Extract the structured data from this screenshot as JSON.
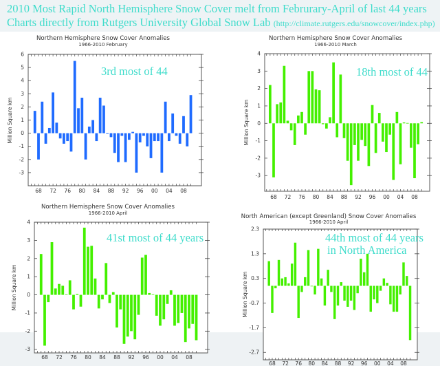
{
  "header": {
    "line1": "2010 Most Rapid North  Hemisphere Snow Cover melt from Februrary-April of last 44 years",
    "line2": "Charts directly from Rutgers University Global Snow Lab",
    "line2_url": "(http://climate.rutgers.edu/snowcover/index.php)"
  },
  "colors": {
    "header_text": "#3fdccb",
    "annotation": "#3fdccb",
    "blue_bars": "#1f6bff",
    "green_bars": "#44f000"
  },
  "chart_data": [
    {
      "type": "bar",
      "title": "Northern Hemisphere Snow Cover Anomalies",
      "subtitle": "1966-2010 February",
      "ylabel": "Million Square km",
      "annotation": [
        "3rd most of 44"
      ],
      "color": "#1f6bff",
      "ylim": [
        -4,
        6
      ],
      "yticks": [
        "6",
        "5",
        "4",
        "3",
        "2",
        "1",
        "0",
        "-1",
        "-2",
        "-3"
      ],
      "xticks": [
        "68",
        "72",
        "76",
        "80",
        "84",
        "88",
        "92",
        "96",
        "00",
        "04",
        "08"
      ],
      "x_start": 1967,
      "values": [
        1.7,
        -2.0,
        2.4,
        -0.8,
        0.4,
        3.1,
        0.8,
        -0.4,
        -0.8,
        -0.6,
        -1.4,
        5.5,
        1.9,
        2.7,
        -2.0,
        0.5,
        1.0,
        -0.6,
        2.7,
        2.1,
        -0.05,
        -0.3,
        -1.5,
        -2.2,
        -0.2,
        -2.2,
        -0.5,
        0.1,
        -3.0,
        -0.7,
        -0.2,
        -1.0,
        -1.9,
        -0.6,
        -0.6,
        -3.0,
        2.4,
        -0.6,
        1.5,
        -0.2,
        -0.8,
        1.3,
        -1.0,
        2.9
      ]
    },
    {
      "type": "bar",
      "title": "Northern Hemisphere Snow Cover Anomalies",
      "subtitle": "1966-2010 March",
      "ylabel": "Million Square km",
      "annotation": [
        "18th most of 44"
      ],
      "color": "#44f000",
      "ylim": [
        -3.9,
        4
      ],
      "yticks": [
        "4",
        "3",
        "2",
        "1",
        "0",
        "-1",
        "-2",
        "-3"
      ],
      "xticks": [
        "68",
        "72",
        "76",
        "80",
        "84",
        "88",
        "92",
        "96",
        "00",
        "04",
        "08"
      ],
      "x_start": 1967,
      "values": [
        2.2,
        -3.1,
        1.1,
        1.2,
        3.3,
        0.15,
        -0.4,
        -1.25,
        0.45,
        0.65,
        -0.65,
        3.0,
        3.0,
        1.95,
        1.9,
        -0.05,
        -0.3,
        0.35,
        3.5,
        -0.8,
        2.8,
        -0.85,
        -2.15,
        -3.55,
        -1.25,
        -2.15,
        -0.95,
        -1.3,
        -2.45,
        1.05,
        -1.7,
        0.6,
        -1.05,
        -1.65,
        -0.65,
        -3.25,
        0.65,
        -2.35,
        0.05,
        0.02,
        -1.4,
        -3.15,
        -1.2,
        0.07
      ]
    },
    {
      "type": "bar",
      "title": "Northern Hemisphere Snow Cover Anomalies",
      "subtitle": "1966-2010 April",
      "ylabel": "Million Square km",
      "annotation": [
        "41st most of 44 years"
      ],
      "color": "#44f000",
      "ylim": [
        -3.2,
        4
      ],
      "yticks": [
        "4",
        "3",
        "2",
        "1",
        "0",
        "-1",
        "-2",
        "-3"
      ],
      "xticks": [
        "68",
        "72",
        "76",
        "80",
        "84",
        "88",
        "92",
        "96",
        "00",
        "04",
        "08"
      ],
      "x_start": 1967,
      "values": [
        2.25,
        -2.8,
        -0.4,
        2.9,
        0.35,
        0.6,
        0.5,
        0.03,
        0.8,
        -0.8,
        0.05,
        -0.65,
        3.7,
        2.65,
        2.7,
        0.9,
        -0.75,
        -0.25,
        1.75,
        -0.45,
        0.15,
        -1.8,
        -0.8,
        -2.7,
        -2.3,
        -2.0,
        -2.45,
        -1.1,
        2.05,
        2.2,
        0.1,
        0.03,
        -1.15,
        -1.7,
        -1.35,
        -0.5,
        0.25,
        -1.7,
        -1.55,
        -1.0,
        -2.6,
        -1.85,
        -1.6,
        -2.5
      ]
    },
    {
      "type": "bar",
      "title": "North American (except Greenland) Snow Cover Anomalies",
      "subtitle": "1966-2010 April",
      "ylabel": "Million Square km",
      "annotation": [
        "44th most of 44 years",
        "in North America"
      ],
      "color": "#44f000",
      "ylim": [
        -3.0,
        2.3
      ],
      "yticks": [
        "2.3",
        "1.3",
        "0.3",
        "-0.7",
        "-1.7",
        "-2.7"
      ],
      "xticks": [
        "68",
        "72",
        "76",
        "80",
        "84",
        "88",
        "92",
        "96",
        "00",
        "04",
        "08"
      ],
      "x_start": 1967,
      "values": [
        1.0,
        -1.1,
        -0.1,
        1.05,
        0.3,
        0.35,
        0.1,
        0.9,
        1.75,
        -1.3,
        -0.25,
        0.35,
        1.45,
        0.0,
        -0.35,
        1.5,
        0.3,
        -0.8,
        0.65,
        -0.25,
        -1.35,
        -0.8,
        0.15,
        -0.6,
        -0.85,
        -0.6,
        -0.98,
        -0.3,
        1.1,
        0.55,
        1.3,
        -1.05,
        -0.55,
        -0.7,
        -0.2,
        0.3,
        0.12,
        -0.75,
        -1.05,
        -1.05,
        -0.35,
        0.95,
        0.4,
        -2.2
      ]
    }
  ]
}
